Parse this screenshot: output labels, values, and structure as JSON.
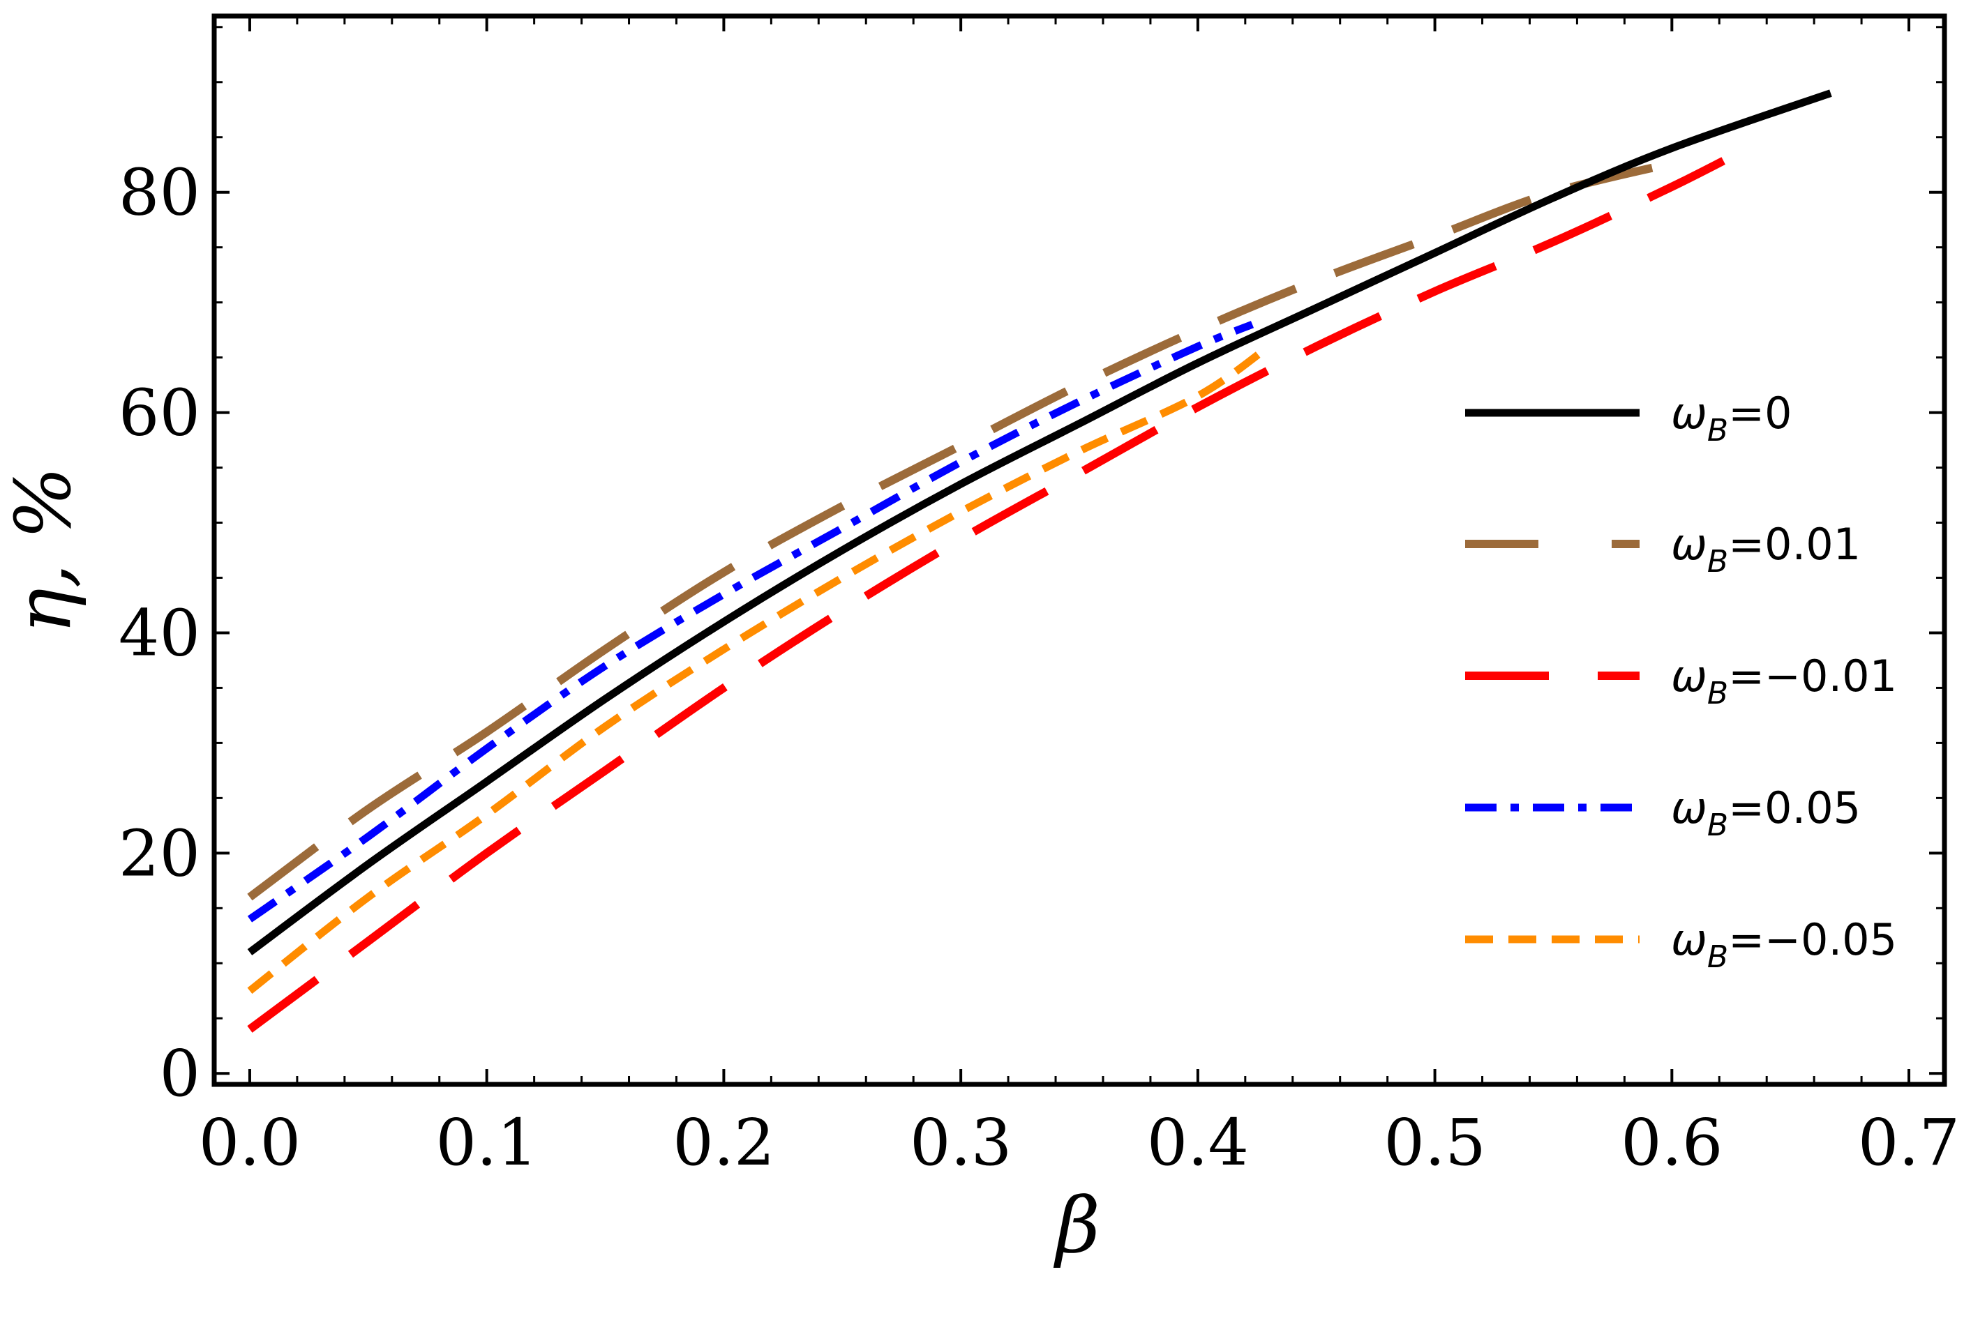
{
  "chart_data": {
    "type": "line",
    "title": "",
    "xlabel": "β",
    "ylabel": "η, %",
    "xlim": [
      -0.015,
      0.715
    ],
    "ylim": [
      -1,
      96
    ],
    "x_ticks": [
      0.0,
      0.1,
      0.2,
      0.3,
      0.4,
      0.5,
      0.6,
      0.7
    ],
    "x_tick_labels": [
      "0.0",
      "0.1",
      "0.2",
      "0.3",
      "0.4",
      "0.5",
      "0.6",
      "0.7"
    ],
    "y_ticks": [
      0,
      20,
      40,
      60,
      80
    ],
    "y_tick_labels": [
      "0",
      "20",
      "40",
      "60",
      "80"
    ],
    "grid": false,
    "legend_position": "right",
    "series": [
      {
        "name": "ω_B=0",
        "label_main": "ω",
        "label_sub": "B",
        "label_value": "=0",
        "color": "#000000",
        "dash": "solid",
        "x": [
          0.0,
          0.05,
          0.1,
          0.15,
          0.2,
          0.25,
          0.3,
          0.35,
          0.4,
          0.45,
          0.5,
          0.55,
          0.6,
          0.667
        ],
        "y": [
          11.0,
          19.0,
          26.5,
          34.0,
          41.0,
          47.5,
          53.5,
          59.0,
          64.5,
          69.5,
          74.5,
          79.5,
          84.0,
          89.0
        ]
      },
      {
        "name": "ω_B=0.01",
        "label_main": "ω",
        "label_sub": "B",
        "label_value": "=0.01",
        "color": "#9C6B3A",
        "dash": "longdash",
        "x": [
          0.0,
          0.05,
          0.1,
          0.15,
          0.2,
          0.25,
          0.3,
          0.35,
          0.4,
          0.45,
          0.5,
          0.55,
          0.608
        ],
        "y": [
          16.0,
          24.0,
          31.0,
          38.5,
          45.5,
          51.5,
          57.0,
          62.5,
          67.5,
          72.0,
          76.0,
          80.0,
          83.0
        ]
      },
      {
        "name": "ω_B=-0.01",
        "label_main": "ω",
        "label_sub": "B",
        "label_value": "=−0.01",
        "color": "#FF0000",
        "dash": "longdash",
        "x": [
          0.0,
          0.05,
          0.1,
          0.15,
          0.2,
          0.25,
          0.3,
          0.35,
          0.4,
          0.45,
          0.5,
          0.55,
          0.6,
          0.632
        ],
        "y": [
          4.0,
          12.0,
          20.0,
          27.5,
          35.0,
          42.0,
          48.5,
          54.5,
          60.5,
          66.0,
          71.0,
          75.5,
          80.5,
          84.0
        ]
      },
      {
        "name": "ω_B=0.05",
        "label_main": "ω",
        "label_sub": "B",
        "label_value": "=0.05",
        "color": "#0000FF",
        "dash": "dashdot",
        "x": [
          0.0,
          0.05,
          0.1,
          0.15,
          0.2,
          0.25,
          0.3,
          0.35,
          0.4,
          0.423
        ],
        "y": [
          14.0,
          21.5,
          29.5,
          37.0,
          43.5,
          49.5,
          55.5,
          61.0,
          66.0,
          68.0
        ]
      },
      {
        "name": "ω_B=-0.05",
        "label_main": "ω",
        "label_sub": "B",
        "label_value": "=−0.05",
        "color": "#FF8C00",
        "dash": "shortdash",
        "x": [
          0.0,
          0.05,
          0.1,
          0.15,
          0.2,
          0.25,
          0.3,
          0.35,
          0.4,
          0.43
        ],
        "y": [
          7.5,
          16.0,
          23.5,
          31.5,
          38.5,
          45.0,
          51.0,
          56.5,
          61.5,
          66.0
        ]
      }
    ]
  }
}
